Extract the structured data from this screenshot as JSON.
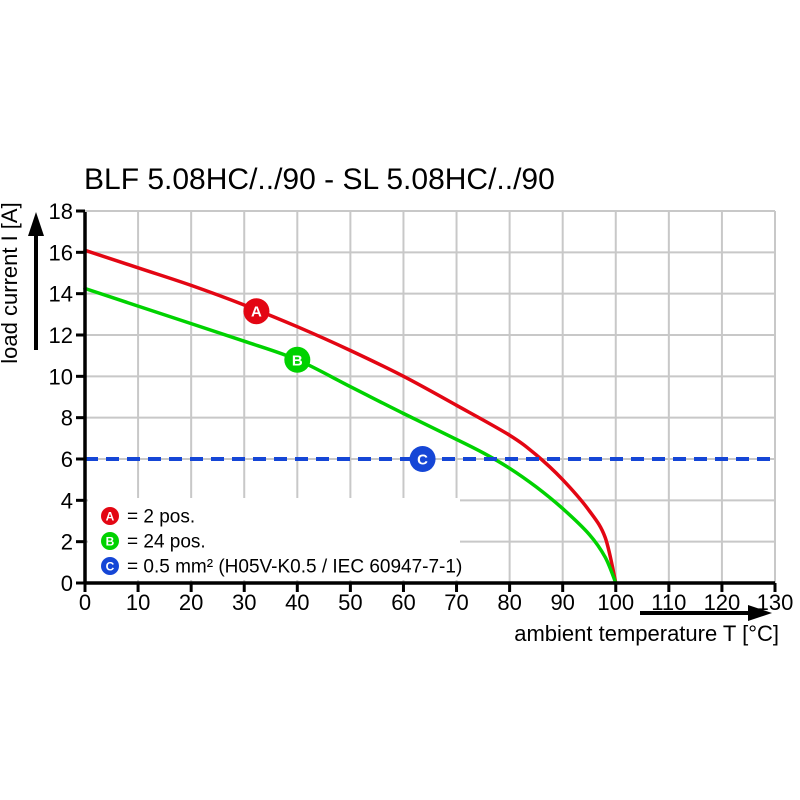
{
  "title": "BLF 5.08HC/../90 - SL 5.08HC/../90",
  "colors": {
    "red": "#e30613",
    "green": "#00d200",
    "blue": "#1546d6",
    "grid": "#c8c8c8",
    "axis": "#000000",
    "background": "#ffffff",
    "marker_letter": "#ffffff"
  },
  "chart_data": {
    "type": "line",
    "title": "BLF 5.08HC/../90 - SL 5.08HC/../90",
    "xlabel": "ambient temperature T [°C]",
    "ylabel": "load current I [A]",
    "xlim": [
      0,
      130
    ],
    "ylim": [
      0,
      18
    ],
    "x_ticks": [
      0,
      10,
      20,
      30,
      40,
      50,
      60,
      70,
      80,
      90,
      100,
      110,
      120,
      130
    ],
    "y_ticks": [
      0,
      2,
      4,
      6,
      8,
      10,
      12,
      14,
      16,
      18
    ],
    "grid": true,
    "legend_position": "bottom-left-inside",
    "series": [
      {
        "name": "A",
        "legend": "= 2 pos.",
        "color_key": "red",
        "kind": "curve",
        "points": [
          [
            0,
            16.1
          ],
          [
            10,
            15.25
          ],
          [
            20,
            14.4
          ],
          [
            30,
            13.45
          ],
          [
            40,
            12.4
          ],
          [
            50,
            11.25
          ],
          [
            60,
            10.0
          ],
          [
            70,
            8.6
          ],
          [
            80,
            7.15
          ],
          [
            85,
            6.2
          ],
          [
            90,
            5.0
          ],
          [
            95,
            3.5
          ],
          [
            98,
            2.2
          ],
          [
            100,
            0
          ]
        ],
        "marker": {
          "label": "A",
          "x": 32.3,
          "y": 13.15
        }
      },
      {
        "name": "B",
        "legend": "= 24 pos.",
        "color_key": "green",
        "kind": "curve",
        "points": [
          [
            0,
            14.25
          ],
          [
            10,
            13.4
          ],
          [
            20,
            12.55
          ],
          [
            30,
            11.7
          ],
          [
            40,
            10.8
          ],
          [
            50,
            9.5
          ],
          [
            60,
            8.2
          ],
          [
            70,
            6.95
          ],
          [
            75,
            6.3
          ],
          [
            80,
            5.55
          ],
          [
            85,
            4.65
          ],
          [
            90,
            3.6
          ],
          [
            95,
            2.35
          ],
          [
            98,
            1.25
          ],
          [
            100,
            0
          ]
        ],
        "marker": {
          "label": "B",
          "x": 40,
          "y": 10.8
        }
      },
      {
        "name": "C",
        "legend": "= 0.5 mm² (H05V-K0.5 / IEC 60947-7-1)",
        "color_key": "blue",
        "kind": "dashed-hline",
        "value": 6,
        "marker": {
          "label": "C",
          "x": 63.6,
          "y": 6
        }
      }
    ]
  }
}
